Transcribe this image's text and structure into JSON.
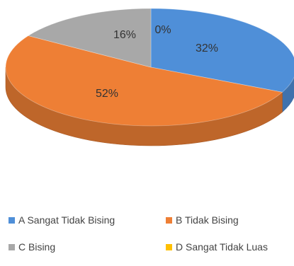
{
  "chart_data": {
    "type": "pie",
    "style": "3d",
    "title": "",
    "labels": [
      "A Sangat Tidak Bising",
      "B Tidak Bising",
      "C Bising",
      "D Sangat Tidak Luas"
    ],
    "values": [
      32,
      52,
      16,
      0
    ],
    "value_labels": [
      "32%",
      "52%",
      "16%",
      "0%"
    ],
    "colors": [
      "#4f8fd8",
      "#ee7f35",
      "#a8a8a8",
      "#ffc000"
    ],
    "legend_position": "bottom"
  }
}
